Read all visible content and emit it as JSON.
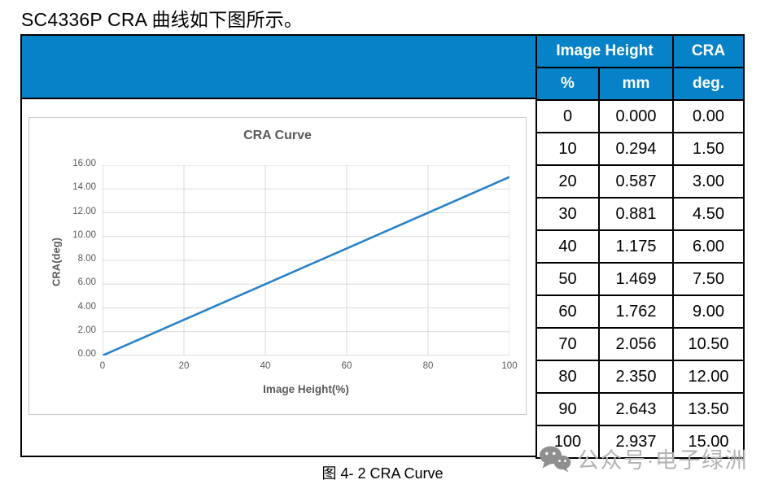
{
  "page": {
    "title": "SC4336P CRA 曲线如下图所示。",
    "caption": "图 4- 2 CRA Curve"
  },
  "colors": {
    "header_blue": "#0682C8",
    "line_blue": "#2882C8",
    "gridline": "#D9D9D9",
    "axis_line": "#BFBFBF",
    "axis_text": "#595959",
    "watermark_icon_gray": "#8F8F8F",
    "watermark_text_gray": "#B3B3B3"
  },
  "table": {
    "header": {
      "image_height": "Image Height",
      "cra": "CRA",
      "unit_pct": "%",
      "unit_mm": "mm",
      "unit_deg": "deg."
    },
    "rows": [
      [
        "0",
        "0.000",
        "0.00"
      ],
      [
        "10",
        "0.294",
        "1.50"
      ],
      [
        "20",
        "0.587",
        "3.00"
      ],
      [
        "30",
        "0.881",
        "4.50"
      ],
      [
        "40",
        "1.175",
        "6.00"
      ],
      [
        "50",
        "1.469",
        "7.50"
      ],
      [
        "60",
        "1.762",
        "9.00"
      ],
      [
        "70",
        "2.056",
        "10.50"
      ],
      [
        "80",
        "2.350",
        "12.00"
      ],
      [
        "90",
        "2.643",
        "13.50"
      ],
      [
        "100",
        "2.937",
        "15.00"
      ]
    ]
  },
  "chart_data": {
    "type": "line",
    "title": "CRA Curve",
    "xlabel": "Image Height(%)",
    "ylabel": "CRA(deg)",
    "x": [
      0,
      10,
      20,
      30,
      40,
      50,
      60,
      70,
      80,
      90,
      100
    ],
    "y": [
      0.0,
      1.5,
      3.0,
      4.5,
      6.0,
      7.5,
      9.0,
      10.5,
      12.0,
      13.5,
      15.0
    ],
    "xlim": [
      0,
      100
    ],
    "ylim": [
      0,
      16
    ],
    "x_ticks": [
      "0",
      "20",
      "40",
      "60",
      "80",
      "100"
    ],
    "y_ticks": [
      "0.00",
      "2.00",
      "4.00",
      "6.00",
      "8.00",
      "10.00",
      "12.00",
      "14.00",
      "16.00"
    ],
    "grid": true,
    "legend": false
  },
  "watermark": {
    "icon": "wechat-icon",
    "text": "公众号·电子绿洲"
  }
}
